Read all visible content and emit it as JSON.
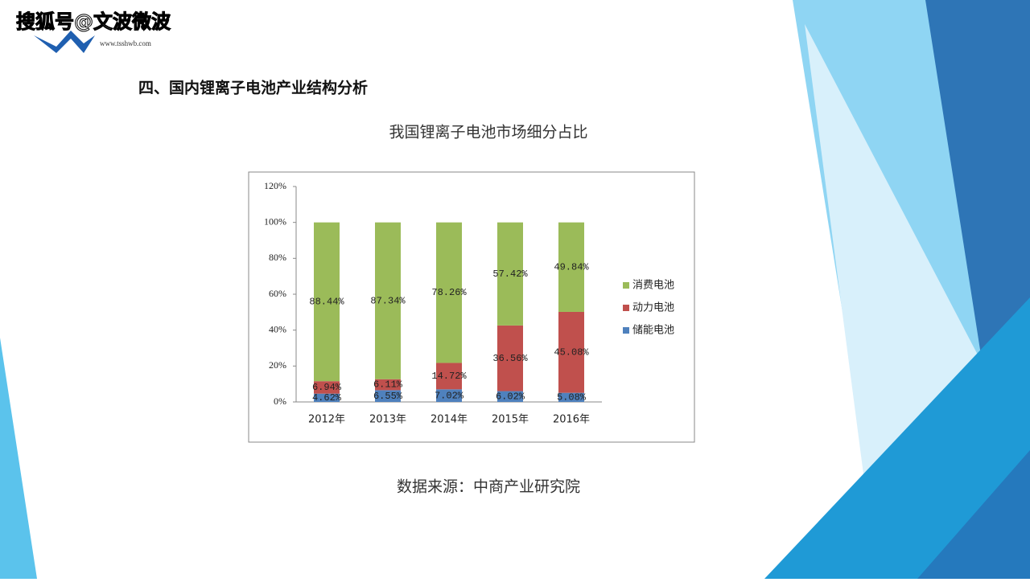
{
  "watermark": "搜狐号@文波微波",
  "logo_url": "www.tsshwb.com",
  "heading": "四、国内锂离子电池产业结构分析",
  "source": "数据来源：中商产业研究院",
  "chart_data": {
    "type": "stacked_bar",
    "title": "我国锂离子电池市场细分占比",
    "categories": [
      "2012年",
      "2013年",
      "2014年",
      "2015年",
      "2016年"
    ],
    "series": [
      {
        "name": "储能电池",
        "color": "#4f81bd",
        "values": [
          4.62,
          6.55,
          7.02,
          6.02,
          5.08
        ],
        "value_labels": [
          "4.62%",
          "6.55%",
          "7.02%",
          "6.02%",
          "5.08%"
        ]
      },
      {
        "name": "动力电池",
        "color": "#c0504d",
        "values": [
          6.94,
          6.11,
          14.72,
          36.56,
          45.08
        ],
        "value_labels": [
          "6.94%",
          "6.11%",
          "14.72%",
          "36.56%",
          "45.08%"
        ]
      },
      {
        "name": "消费电池",
        "color": "#9bbb59",
        "values": [
          88.44,
          87.34,
          78.26,
          57.42,
          49.84
        ],
        "value_labels": [
          "88.44%",
          "87.34%",
          "78.26%",
          "57.42%",
          "49.84%"
        ]
      }
    ],
    "ylim": [
      0,
      120
    ],
    "yticks": [
      {
        "value": 0,
        "label": "0%"
      },
      {
        "value": 20,
        "label": "20%"
      },
      {
        "value": 40,
        "label": "40%"
      },
      {
        "value": 60,
        "label": "60%"
      },
      {
        "value": 80,
        "label": "80%"
      },
      {
        "value": 100,
        "label": "100%"
      },
      {
        "value": 120,
        "label": "120%"
      }
    ],
    "legend": "right"
  }
}
